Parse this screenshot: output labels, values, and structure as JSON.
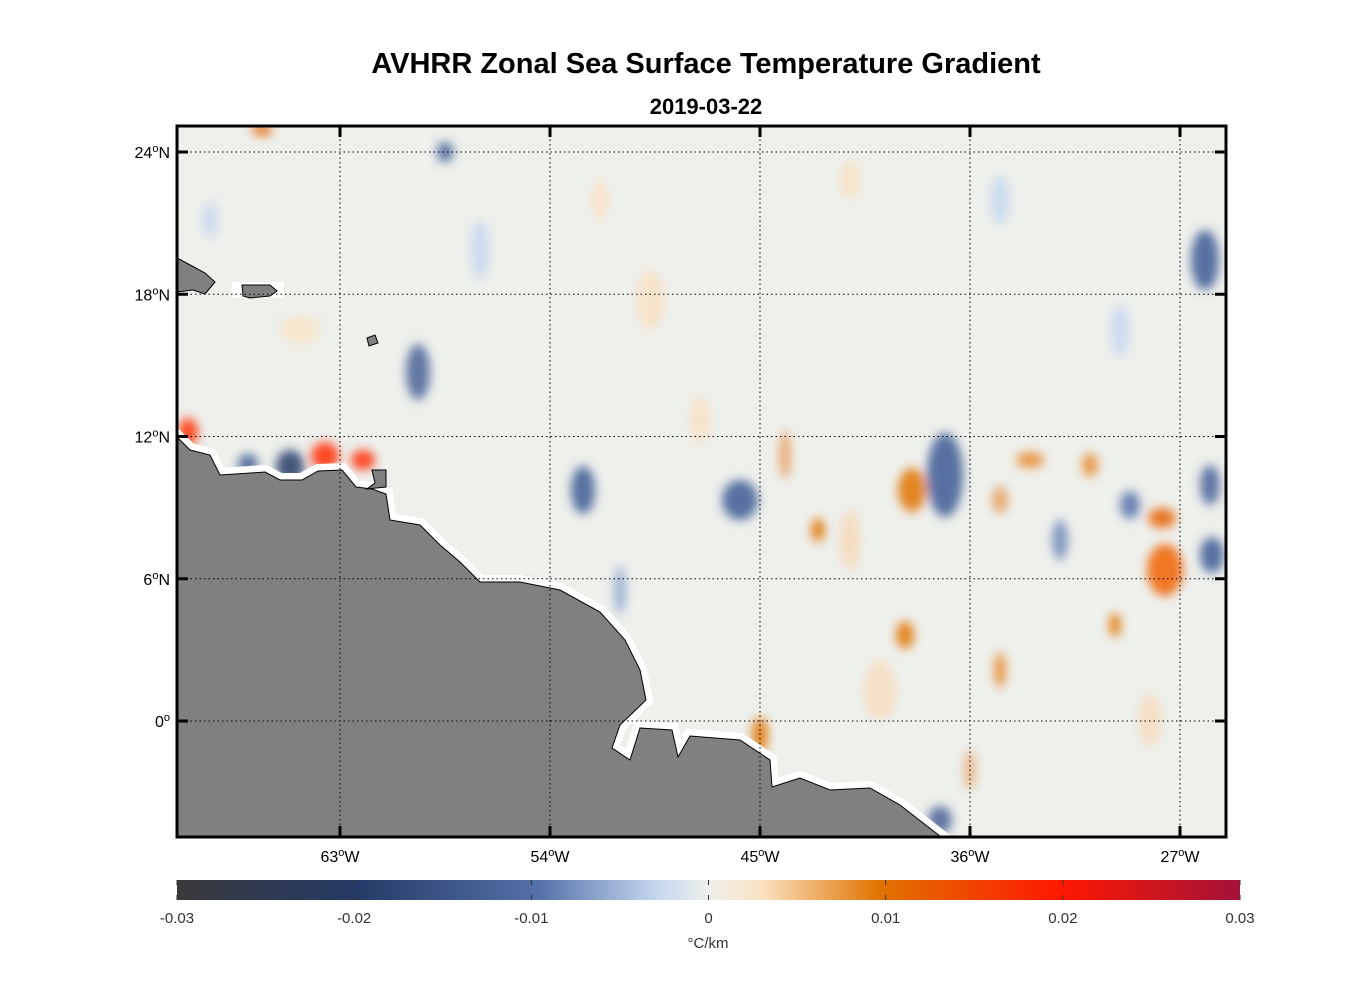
{
  "chart_data": {
    "type": "heatmap",
    "title": "AVHRR Zonal Sea Surface Temperature Gradient",
    "subtitle": "2019-03-22",
    "lat_ticks": [
      {
        "value": 24,
        "label": "24",
        "suffix": "N"
      },
      {
        "value": 18,
        "label": "18",
        "suffix": "N"
      },
      {
        "value": 12,
        "label": "12",
        "suffix": "N"
      },
      {
        "value": 6,
        "label": "6",
        "suffix": "N"
      },
      {
        "value": 0,
        "label": "0",
        "suffix": ""
      }
    ],
    "lon_ticks": [
      {
        "value": -63,
        "label": "63",
        "suffix": "W"
      },
      {
        "value": -54,
        "label": "54",
        "suffix": "W"
      },
      {
        "value": -45,
        "label": "45",
        "suffix": "W"
      },
      {
        "value": -36,
        "label": "36",
        "suffix": "W"
      },
      {
        "value": -27,
        "label": "27",
        "suffix": "W"
      }
    ],
    "colorbar": {
      "label": "°C/km",
      "range": [
        -0.03,
        0.03
      ],
      "ticks": [
        "-0.03",
        "-0.02",
        "-0.01",
        "0",
        "0.01",
        "0.02",
        "0.03"
      ],
      "colors": [
        "#3a3a3c",
        "#253a66",
        "#5470a8",
        "#c4d6ee",
        "#eef0ec",
        "#fbe2c2",
        "#e07400",
        "#ff1800",
        "#a3123a"
      ]
    },
    "land_color": "#808080",
    "grid": "dotted"
  }
}
